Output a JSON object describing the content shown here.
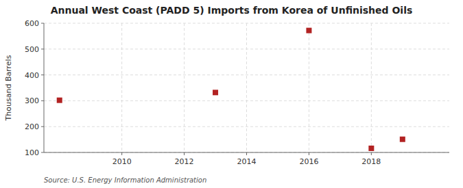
{
  "chart_data": {
    "type": "scatter",
    "title": "Annual West Coast (PADD 5) Imports from Korea of Unfinished Oils",
    "ylabel": "Thousand Barrels",
    "annotations": [
      "Source: U.S. Energy Information Administration"
    ],
    "x": [
      2008,
      2013,
      2016,
      2018,
      2019
    ],
    "values": [
      302,
      332,
      572,
      116,
      151
    ],
    "color": "#b22222",
    "marker": "square",
    "xlim": [
      2007.5,
      2020.5
    ],
    "ylim": [
      100,
      600
    ],
    "xticks": [
      2010,
      2012,
      2014,
      2016,
      2018
    ],
    "yticks": [
      100,
      200,
      300,
      400,
      500,
      600
    ],
    "grid": true
  }
}
